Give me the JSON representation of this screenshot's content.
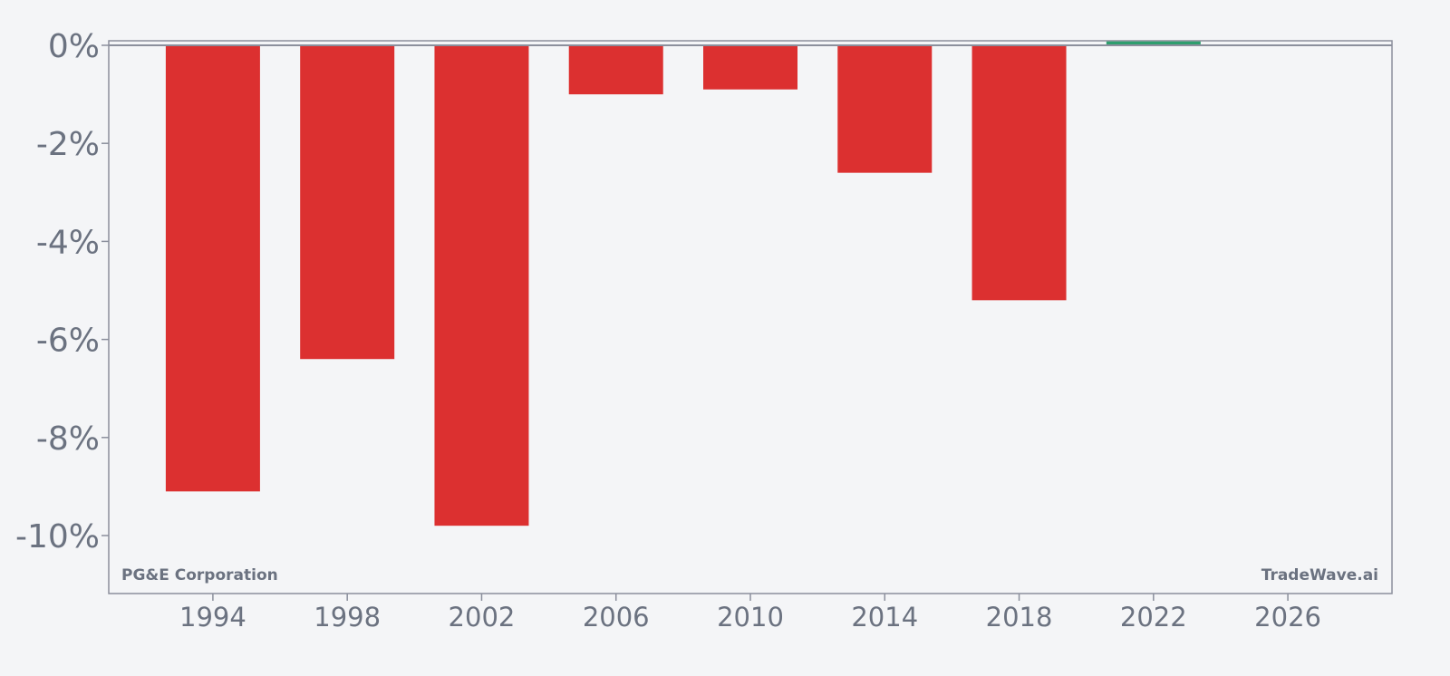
{
  "chart_data": {
    "type": "bar",
    "categories": [
      "1994",
      "1998",
      "2002",
      "2006",
      "2010",
      "2014",
      "2018",
      "2022"
    ],
    "x": [
      1994,
      1998,
      2002,
      2006,
      2010,
      2014,
      2018,
      2022
    ],
    "values": [
      -9.1,
      -6.4,
      -9.8,
      -1.0,
      -0.9,
      -2.6,
      -5.2,
      0.08
    ],
    "xlim": [
      1990.9,
      2029.1
    ],
    "ylim": [
      -11.2,
      0.1
    ],
    "xticks": [
      1994,
      1998,
      2002,
      2006,
      2010,
      2014,
      2018,
      2022,
      2026
    ],
    "xtick_labels": [
      "1994",
      "1998",
      "2002",
      "2006",
      "2010",
      "2014",
      "2018",
      "2022",
      "2026"
    ],
    "yticks": [
      0,
      -2,
      -4,
      -6,
      -8,
      -10
    ],
    "ytick_labels": [
      "0%",
      "-2%",
      "-4%",
      "-6%",
      "-8%",
      "-10%"
    ],
    "title": "",
    "xlabel": "",
    "ylabel": "",
    "grid": false,
    "legend": "none",
    "colors": {
      "negative": "#dc3030",
      "positive": "#2e9e6e",
      "axis": "#8b8f9c",
      "text": "#6b7280",
      "background": "#f4f5f7"
    }
  },
  "watermark_left": "PG&E Corporation",
  "watermark_right": "TradeWave.ai"
}
